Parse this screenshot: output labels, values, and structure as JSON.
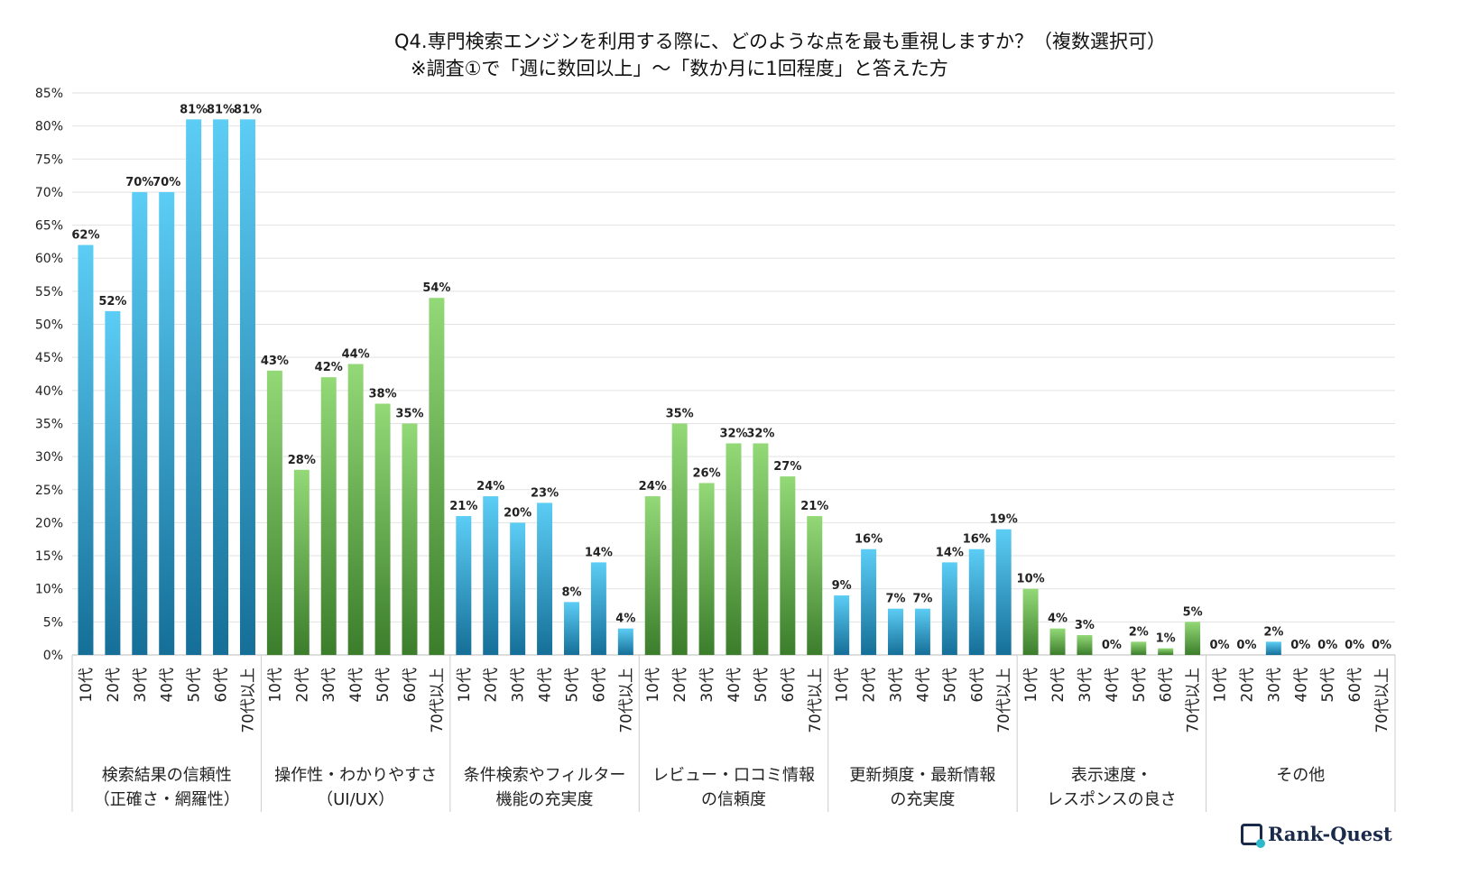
{
  "chart_data": {
    "type": "bar",
    "title": "Q4.専門検索エンジンを利用する際に、どのような点を最も重視しますか？（複数選択可）",
    "subtitle": "※調査①で「週に数回以上」～「数か月に1回程度」と答えた方",
    "ylim": [
      0,
      85
    ],
    "yticks": [
      "0%",
      "5%",
      "10%",
      "15%",
      "20%",
      "25%",
      "30%",
      "35%",
      "40%",
      "45%",
      "50%",
      "55%",
      "60%",
      "65%",
      "70%",
      "75%",
      "80%",
      "85%"
    ],
    "grid": true,
    "sub_categories": [
      "10代",
      "20代",
      "30代",
      "40代",
      "50代",
      "60代",
      "70代以上"
    ],
    "groups": [
      {
        "label": [
          "検索結果の信頼性",
          "（正確さ・網羅性）"
        ],
        "color": "blue",
        "values": [
          62,
          52,
          70,
          70,
          81,
          81,
          81
        ]
      },
      {
        "label": [
          "操作性・わかりやすさ",
          "（UI/UX）"
        ],
        "color": "green",
        "values": [
          43,
          28,
          42,
          44,
          38,
          35,
          54
        ]
      },
      {
        "label": [
          "条件検索やフィルター",
          "機能の充実度"
        ],
        "color": "blue",
        "values": [
          21,
          24,
          20,
          23,
          8,
          14,
          4
        ]
      },
      {
        "label": [
          "レビュー・口コミ情報",
          "の信頼度"
        ],
        "color": "green",
        "values": [
          24,
          35,
          26,
          32,
          32,
          27,
          21
        ]
      },
      {
        "label": [
          "更新頻度・最新情報",
          "の充実度"
        ],
        "color": "blue",
        "values": [
          9,
          16,
          7,
          7,
          14,
          16,
          19
        ]
      },
      {
        "label": [
          "表示速度・",
          "レスポンスの良さ"
        ],
        "color": "green",
        "values": [
          10,
          4,
          3,
          0,
          2,
          1,
          5
        ]
      },
      {
        "label": [
          "その他"
        ],
        "color": "blue",
        "values": [
          0,
          0,
          2,
          0,
          0,
          0,
          0
        ]
      }
    ],
    "colors": {
      "blue_top": "#5ccdf5",
      "blue_bottom": "#156f98",
      "green_top": "#93d977",
      "green_bottom": "#3b7d2b"
    }
  },
  "logo": "Rank-Quest"
}
